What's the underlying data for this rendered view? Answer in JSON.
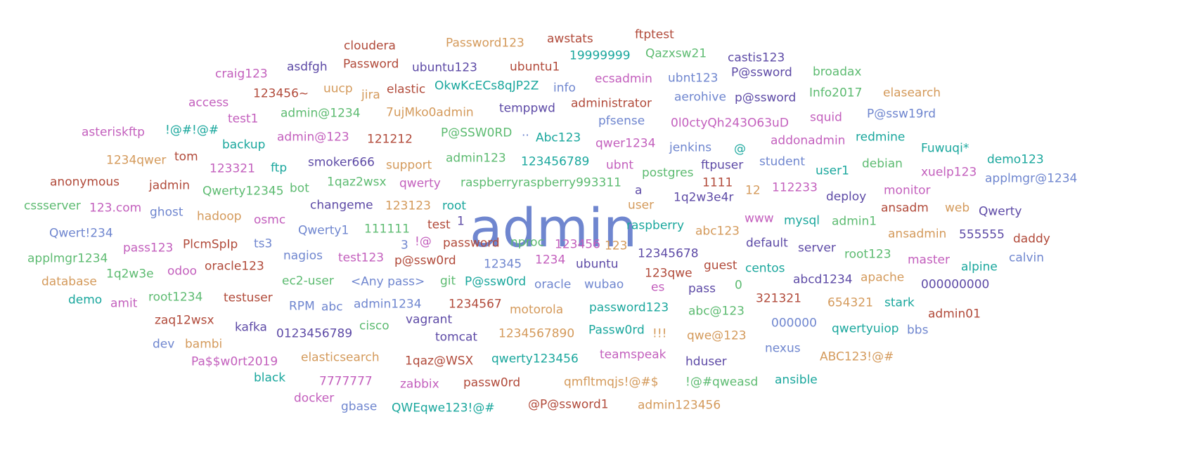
{
  "words": [
    "admin",
    "cloudera",
    "Password123",
    "awstats",
    "ftptest",
    "19999999",
    "Qazxsw21",
    "castis123",
    "craig123",
    "asdfgh",
    "Password",
    "ubuntu123",
    "ubuntu1",
    "ecsadmin",
    "ubnt123",
    "P@ssword",
    "broadax",
    "access",
    "123456~",
    "uucp",
    "jira",
    "elastic",
    "OkwKcECs8qJP2Z",
    "info",
    "aerohive",
    "p@ssword",
    "Info2017",
    "elasearch",
    "test1",
    "admin@1234",
    "7ujMko0admin",
    "temppwd",
    "administrator",
    "P@ssw19rd",
    "asteriskftp",
    "!@#!@#",
    "pfsense",
    "0l0ctyQh243O63uD",
    "squid",
    "backup",
    "admin@123",
    "121212",
    "P@SSW0RD",
    "..",
    "Abc123",
    "addonadmin",
    "redmine",
    "1234qwer",
    "tom",
    "qwer1234",
    "jenkins",
    "@",
    "Fuwuqi*",
    "demo123",
    "123321",
    "ftp",
    "smoker666",
    "support",
    "admin123",
    "123456789",
    "ubnt",
    "ftpuser",
    "student",
    "user1",
    "debian",
    "xuelp123",
    "anonymous",
    "jadmin",
    "postgres",
    "1111",
    "applmgr@1234",
    "Qwerty12345",
    "bot",
    "1qaz2wsx",
    "qwerty",
    "raspberryraspberry993311",
    "a",
    "12",
    "112233",
    "monitor",
    "cssserver",
    "123.com",
    "1q2w3e4r",
    "deploy",
    "ansadm",
    "web",
    "Qwerty",
    "ghost",
    "hadoop",
    "changeme",
    "123123",
    "root",
    "user",
    "www",
    "mysql",
    "admin1",
    "osmc",
    "1",
    "raspberry",
    "abc123",
    "ansadmin",
    "555555",
    "Qwert!234",
    "Qwerty1",
    "111111",
    "test",
    "daddy",
    "pass123",
    "PlcmSpIp",
    "ts3",
    "3",
    "!@",
    "password",
    "nproc",
    "123456",
    "123",
    "default",
    "server",
    "root123",
    "master",
    "calvin",
    "12345678",
    "applmgr1234",
    "nagios",
    "test123",
    "alpine",
    "1q2w3e",
    "odoo",
    "oracle123",
    "p@ssw0rd",
    "12345",
    "1234",
    "ubuntu",
    "guest",
    "centos",
    "123qwe",
    "database",
    "ec2-user",
    "<Any pass>",
    "git",
    "P@ssw0rd",
    "oracle",
    "wubao",
    "es",
    "pass",
    "0",
    "abcd1234",
    "apache",
    "000000000",
    "demo",
    "amit",
    "root1234",
    "testuser",
    "RPM",
    "abc",
    "admin1234",
    "1234567",
    "motorola",
    "password123",
    "abc@123",
    "321321",
    "654321",
    "stark",
    "admin01",
    "zaq12wsx",
    "vagrant",
    "cisco",
    "kafka",
    "0123456789",
    "tomcat",
    "1234567890",
    "Passw0rd",
    "!!!",
    "qwe@123",
    "000000",
    "qwertyuiop",
    "bbs",
    "dev",
    "bambi",
    "teamspeak",
    "nexus",
    "Pa$$w0rt2019",
    "elasticsearch",
    "1qaz@WSX",
    "qwerty123456",
    "hduser",
    "ABC123!@#",
    "black",
    "7777777",
    "zabbix",
    "passw0rd",
    "qmfltmqjs!@#$",
    "!@#qweasd",
    "ansible",
    "docker",
    "gbase",
    "QWEqwe123!@#",
    "@P@ssword1",
    "admin123456"
  ]
}
